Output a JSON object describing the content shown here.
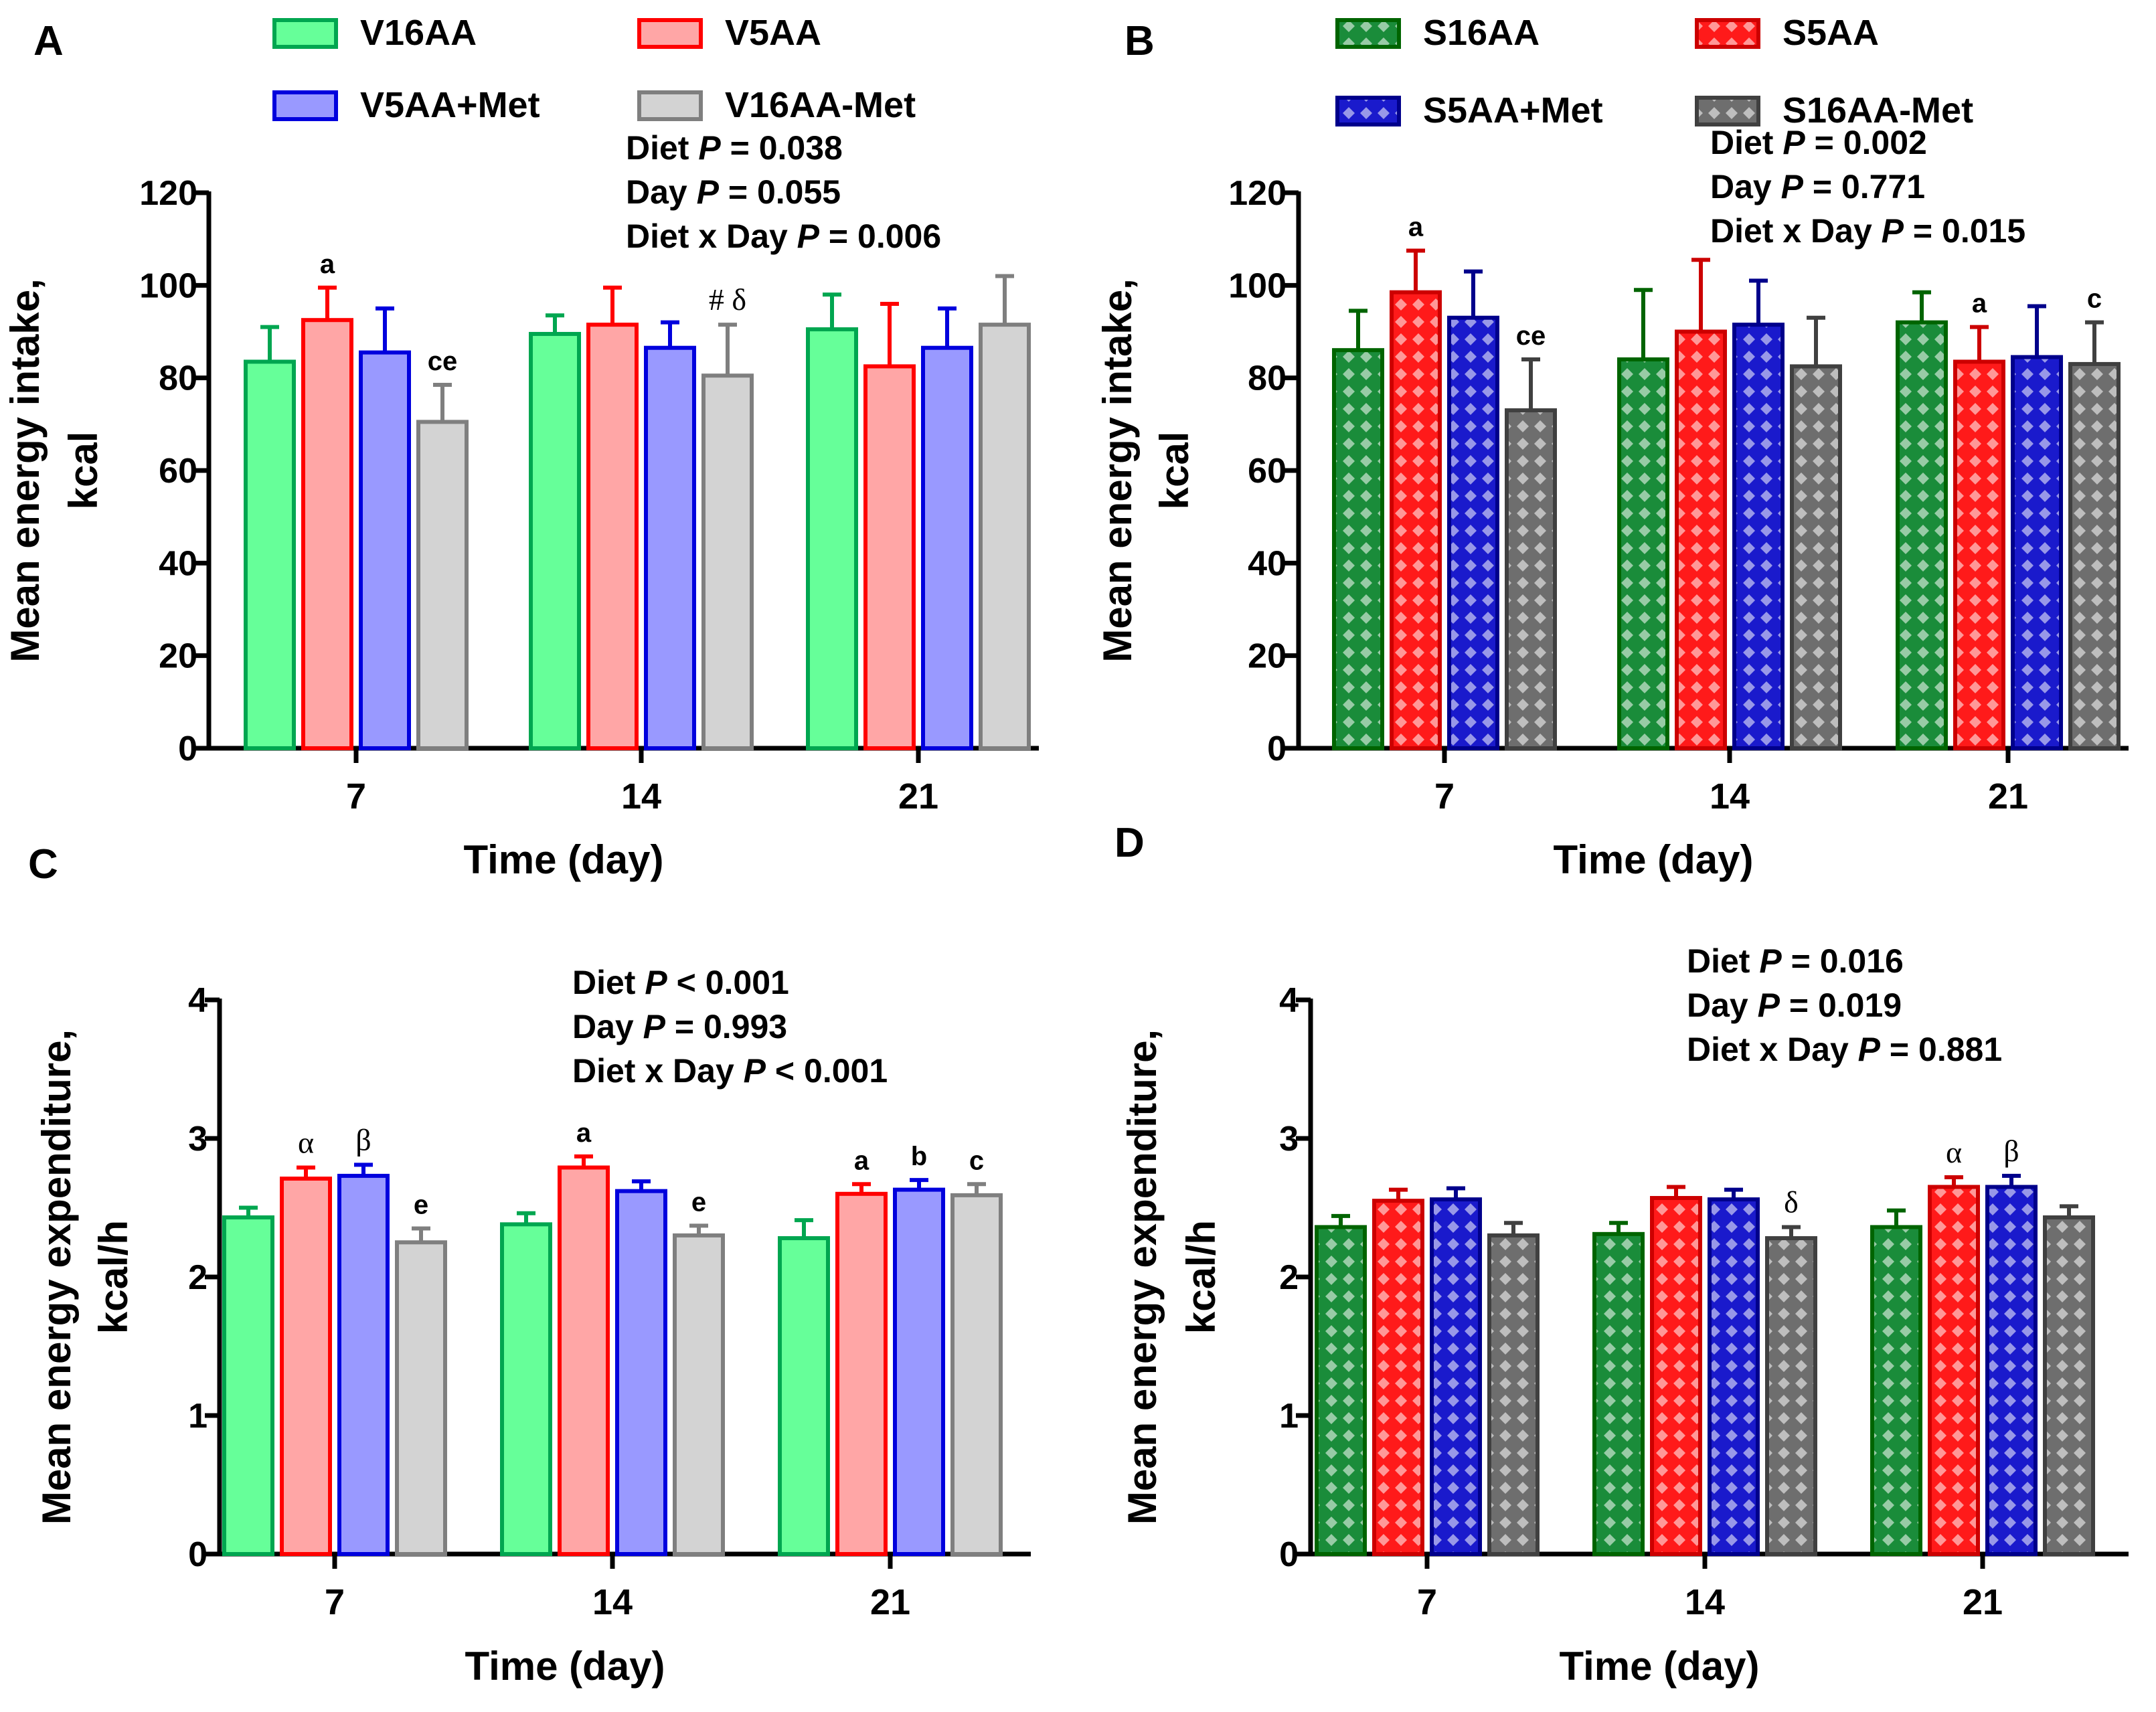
{
  "chart_data": [
    {
      "panel_label": "A",
      "type": "bar",
      "fill_style": "solid",
      "xlabel": "Time (day)",
      "ylabel_lines": [
        "Mean energy intake,",
        "kcal"
      ],
      "ylim": [
        0,
        120
      ],
      "yticks": [
        "0",
        "20",
        "40",
        "60",
        "80",
        "100",
        "120"
      ],
      "categories": [
        "7",
        "14",
        "21"
      ],
      "series": [
        {
          "name": "V16AA",
          "fill": "#66ff99",
          "stroke": "#00a650",
          "values": [
            83.5,
            89.5,
            90.5
          ],
          "errors": [
            7.5,
            4,
            7.5
          ]
        },
        {
          "name": "V5AA",
          "fill": "#ffa6a6",
          "stroke": "#ff0000",
          "values": [
            92.5,
            91.5,
            82.5
          ],
          "errors": [
            7,
            8,
            13.5
          ]
        },
        {
          "name": "V5AA+Met",
          "fill": "#9999ff",
          "stroke": "#0000dd",
          "values": [
            85.5,
            86.5,
            86.5
          ],
          "errors": [
            9.5,
            5.5,
            8.5
          ]
        },
        {
          "name": "V16AA-Met",
          "fill": "#d3d3d3",
          "stroke": "#7f7f7f",
          "values": [
            70.5,
            80.5,
            91.5
          ],
          "errors": [
            8,
            11,
            10.5
          ]
        }
      ],
      "stats": [
        "Diet ",
        "P",
        " = 0.038",
        "Day ",
        "P",
        " = 0.055",
        "Diet x Day ",
        "P",
        " =  0.006"
      ],
      "annotations": [
        {
          "cat": 0,
          "series": 1,
          "text": "a"
        },
        {
          "cat": 0,
          "series": 3,
          "text": "ce"
        },
        {
          "cat": 1,
          "series": 3,
          "text": "# δ"
        }
      ]
    },
    {
      "panel_label": "B",
      "type": "bar",
      "fill_style": "pattern",
      "xlabel": "Time (day)",
      "ylabel_lines": [
        "Mean energy intake,",
        "kcal"
      ],
      "ylim": [
        0,
        120
      ],
      "yticks": [
        "0",
        "20",
        "40",
        "60",
        "80",
        "100",
        "120"
      ],
      "categories": [
        "7",
        "14",
        "21"
      ],
      "series": [
        {
          "name": "S16AA",
          "fill": "#1a8c3a",
          "stroke": "#006400",
          "values": [
            86,
            84,
            92
          ],
          "errors": [
            8.5,
            15,
            6.5
          ]
        },
        {
          "name": "S5AA",
          "fill": "#ff1a1a",
          "stroke": "#cc0000",
          "values": [
            98.5,
            90,
            83.5
          ],
          "errors": [
            9,
            15.5,
            7.5
          ]
        },
        {
          "name": "S5AA+Met",
          "fill": "#1a1acc",
          "stroke": "#00008b",
          "values": [
            93,
            91.5,
            84.5
          ],
          "errors": [
            10,
            9.5,
            11
          ]
        },
        {
          "name": "S16AA-Met",
          "fill": "#6e6e6e",
          "stroke": "#404040",
          "values": [
            73,
            82.5,
            83
          ],
          "errors": [
            11,
            10.5,
            9
          ]
        }
      ],
      "stats": [
        "Diet ",
        "P",
        " = 0.002",
        "Day ",
        "P",
        " = 0.771",
        "Diet x Day ",
        "P",
        " =  0.015"
      ],
      "annotations": [
        {
          "cat": 0,
          "series": 1,
          "text": "a"
        },
        {
          "cat": 0,
          "series": 3,
          "text": "ce"
        },
        {
          "cat": 2,
          "series": 1,
          "text": "a"
        },
        {
          "cat": 2,
          "series": 3,
          "text": "c"
        }
      ]
    },
    {
      "panel_label": "C",
      "type": "bar",
      "fill_style": "solid",
      "xlabel": "Time (day)",
      "ylabel_lines": [
        "Mean energy expenditure,",
        "kcal/h"
      ],
      "ylim": [
        0,
        4
      ],
      "yticks": [
        "0",
        "1",
        "2",
        "3",
        "4"
      ],
      "categories": [
        "7",
        "14",
        "21"
      ],
      "series": [
        {
          "name": "V16AA",
          "fill": "#66ff99",
          "stroke": "#00a650",
          "values": [
            2.43,
            2.38,
            2.28
          ],
          "errors": [
            0.07,
            0.08,
            0.13
          ]
        },
        {
          "name": "V5AA",
          "fill": "#ffa6a6",
          "stroke": "#ff0000",
          "values": [
            2.71,
            2.79,
            2.6
          ],
          "errors": [
            0.08,
            0.08,
            0.07
          ]
        },
        {
          "name": "V5AA+Met",
          "fill": "#9999ff",
          "stroke": "#0000dd",
          "values": [
            2.73,
            2.62,
            2.63
          ],
          "errors": [
            0.08,
            0.07,
            0.07
          ]
        },
        {
          "name": "V16AA-Met",
          "fill": "#d3d3d3",
          "stroke": "#7f7f7f",
          "values": [
            2.25,
            2.3,
            2.59
          ],
          "errors": [
            0.1,
            0.07,
            0.08
          ]
        }
      ],
      "stats": [
        "Diet ",
        "P",
        " < 0.001",
        "Day ",
        "P",
        " = 0.993",
        "Diet x Day ",
        "P",
        " < 0.001"
      ],
      "annotations": [
        {
          "cat": 0,
          "series": 1,
          "text": "α"
        },
        {
          "cat": 0,
          "series": 2,
          "text": "β"
        },
        {
          "cat": 0,
          "series": 3,
          "text": "e"
        },
        {
          "cat": 1,
          "series": 1,
          "text": "a"
        },
        {
          "cat": 1,
          "series": 3,
          "text": "e"
        },
        {
          "cat": 2,
          "series": 1,
          "text": "a"
        },
        {
          "cat": 2,
          "series": 2,
          "text": "b"
        },
        {
          "cat": 2,
          "series": 3,
          "text": "c"
        }
      ]
    },
    {
      "panel_label": "D",
      "type": "bar",
      "fill_style": "pattern",
      "xlabel": "Time (day)",
      "ylabel_lines": [
        "Mean energy expenditure,",
        "kcal/h"
      ],
      "ylim": [
        0,
        4
      ],
      "yticks": [
        "0",
        "1",
        "2",
        "3",
        "4"
      ],
      "categories": [
        "7",
        "14",
        "21"
      ],
      "series": [
        {
          "name": "S16AA",
          "fill": "#1a8c3a",
          "stroke": "#006400",
          "values": [
            2.36,
            2.31,
            2.36
          ],
          "errors": [
            0.08,
            0.08,
            0.12
          ]
        },
        {
          "name": "S5AA",
          "fill": "#ff1a1a",
          "stroke": "#cc0000",
          "values": [
            2.55,
            2.57,
            2.65
          ],
          "errors": [
            0.08,
            0.08,
            0.07
          ]
        },
        {
          "name": "S5AA+Met",
          "fill": "#1a1acc",
          "stroke": "#00008b",
          "values": [
            2.56,
            2.56,
            2.65
          ],
          "errors": [
            0.08,
            0.07,
            0.08
          ]
        },
        {
          "name": "S16AA-Met",
          "fill": "#6e6e6e",
          "stroke": "#404040",
          "values": [
            2.3,
            2.28,
            2.43
          ],
          "errors": [
            0.09,
            0.08,
            0.08
          ]
        }
      ],
      "stats": [
        "Diet ",
        "P",
        " = 0.016",
        "Day ",
        "P",
        " = 0.019",
        "Diet x Day ",
        "P",
        " = 0.881"
      ],
      "annotations": [
        {
          "cat": 1,
          "series": 3,
          "text": "δ"
        },
        {
          "cat": 2,
          "series": 1,
          "text": "α"
        },
        {
          "cat": 2,
          "series": 2,
          "text": "β"
        }
      ]
    }
  ]
}
